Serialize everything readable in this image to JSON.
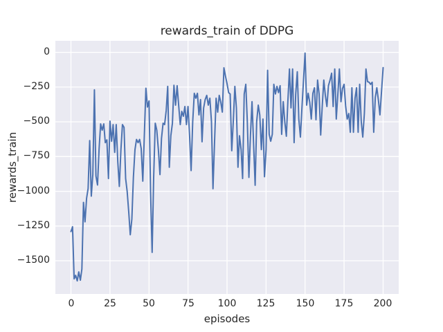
{
  "figure": {
    "background": "#ffffff"
  },
  "chart_data": {
    "type": "line",
    "title": "rewards_train of DDPG",
    "xlabel": "episodes",
    "ylabel": "rewards_train",
    "x_ticks": [
      0,
      25,
      50,
      75,
      100,
      125,
      150,
      175,
      200
    ],
    "x_tick_labels": [
      "0",
      "25",
      "50",
      "75",
      "100",
      "125",
      "150",
      "175",
      "200"
    ],
    "y_ticks": [
      0,
      -250,
      -500,
      -750,
      -1000,
      -1250,
      -1500
    ],
    "y_tick_labels": [
      "0",
      "−250",
      "−500",
      "−750",
      "−1000",
      "−1250",
      "−1500"
    ],
    "xlim": [
      -10,
      210
    ],
    "ylim": [
      -1739,
      83
    ],
    "grid": true,
    "grid_color": "#ffffff",
    "plot_bg": "#eaeaf2",
    "text_color": "#262626",
    "legend_position": "none",
    "series": [
      {
        "name": "rewards_train",
        "color": "#4c72b0",
        "line_width": 2,
        "x_start": 0,
        "x_step": 1,
        "x_note": "episodes 0 to 200, step 1",
        "values": [
          -1290,
          -1255,
          -1630,
          -1605,
          -1645,
          -1580,
          -1640,
          -1560,
          -1080,
          -1220,
          -1050,
          -980,
          -635,
          -1035,
          -880,
          -270,
          -890,
          -955,
          -700,
          -515,
          -560,
          -515,
          -650,
          -630,
          -908,
          -495,
          -640,
          -520,
          -720,
          -520,
          -790,
          -965,
          -700,
          -520,
          -540,
          -908,
          -1000,
          -1150,
          -1313,
          -1200,
          -900,
          -700,
          -627,
          -650,
          -627,
          -693,
          -927,
          -600,
          -258,
          -394,
          -350,
          -1000,
          -1440,
          -900,
          -510,
          -560,
          -700,
          -880,
          -620,
          -510,
          -520,
          -420,
          -245,
          -827,
          -600,
          -510,
          -237,
          -380,
          -240,
          -380,
          -520,
          -425,
          -460,
          -390,
          -520,
          -390,
          -600,
          -851,
          -500,
          -295,
          -330,
          -295,
          -450,
          -340,
          -644,
          -400,
          -340,
          -310,
          -380,
          -330,
          -500,
          -982,
          -640,
          -330,
          -430,
          -310,
          -360,
          -430,
          -111,
          -170,
          -225,
          -290,
          -300,
          -708,
          -500,
          -245,
          -400,
          -827,
          -600,
          -700,
          -908,
          -300,
          -230,
          -500,
          -900,
          -600,
          -355,
          -650,
          -957,
          -500,
          -380,
          -450,
          -700,
          -480,
          -895,
          -700,
          -129,
          -590,
          -640,
          -590,
          -230,
          -300,
          -245,
          -290,
          -240,
          -590,
          -355,
          -500,
          -604,
          -350,
          -120,
          -400,
          -120,
          -650,
          -300,
          -140,
          -480,
          -610,
          -400,
          -200,
          -5,
          -380,
          -295,
          -360,
          -480,
          -295,
          -255,
          -485,
          -200,
          -300,
          -595,
          -390,
          -200,
          -310,
          -390,
          -240,
          -200,
          -150,
          -390,
          -120,
          -480,
          -300,
          -120,
          -355,
          -260,
          -230,
          -385,
          -480,
          -440,
          -575,
          -255,
          -575,
          -330,
          -255,
          -575,
          -230,
          -500,
          -610,
          -440,
          -120,
          -210,
          -215,
          -230,
          -215,
          -575,
          -325,
          -255,
          -345,
          -450,
          -280,
          -110
        ]
      }
    ]
  }
}
